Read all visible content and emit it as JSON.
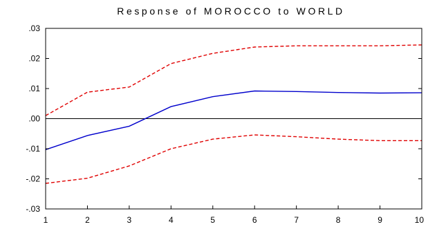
{
  "chart_data": {
    "type": "line",
    "title": "Response of MOROCCO to WORLD",
    "xlabel": "",
    "ylabel": "",
    "x": [
      1,
      2,
      3,
      4,
      5,
      6,
      7,
      8,
      9,
      10
    ],
    "xlim": [
      1,
      10
    ],
    "ylim": [
      -0.03,
      0.03
    ],
    "y_ticks": [
      -0.03,
      -0.02,
      -0.01,
      0.0,
      0.01,
      0.02,
      0.03
    ],
    "y_tick_labels": [
      "-.03",
      "-.02",
      "-.01",
      ".00",
      ".01",
      ".02",
      ".03"
    ],
    "x_tick_labels": [
      "1",
      "2",
      "3",
      "4",
      "5",
      "6",
      "7",
      "8",
      "9",
      "10"
    ],
    "zero_line": true,
    "grid": false,
    "series": [
      {
        "role": "response",
        "color": "#0000cc",
        "dash": "solid",
        "values": [
          -0.0103,
          -0.0056,
          -0.0025,
          0.004,
          0.0073,
          0.0092,
          0.009,
          0.0087,
          0.0085,
          0.0086
        ]
      },
      {
        "role": "upper-band",
        "color": "#e00000",
        "dash": "dashed",
        "values": [
          0.001,
          0.0088,
          0.0105,
          0.0183,
          0.0217,
          0.0238,
          0.0242,
          0.0242,
          0.0242,
          0.0245
        ]
      },
      {
        "role": "lower-band",
        "color": "#e00000",
        "dash": "dashed",
        "values": [
          -0.0215,
          -0.0198,
          -0.0157,
          -0.01,
          -0.0068,
          -0.0054,
          -0.006,
          -0.0068,
          -0.0073,
          -0.0073
        ]
      }
    ]
  }
}
